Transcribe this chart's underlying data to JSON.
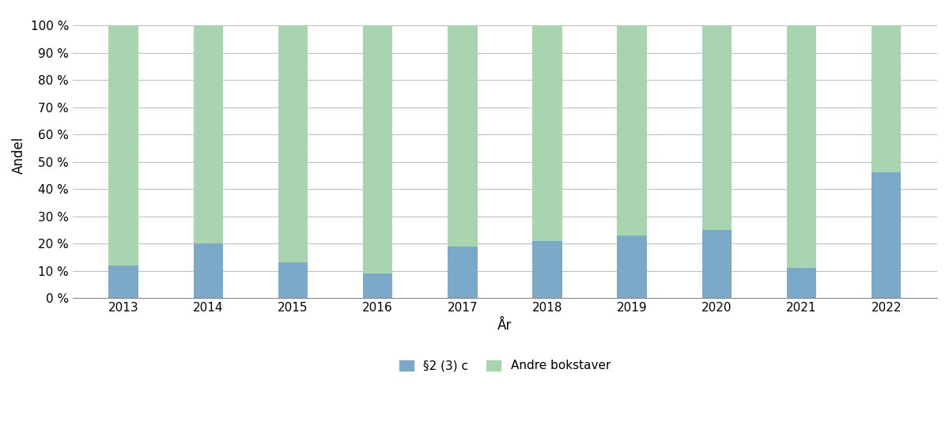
{
  "years": [
    "2013",
    "2014",
    "2015",
    "2016",
    "2017",
    "2018",
    "2019",
    "2020",
    "2021",
    "2022"
  ],
  "s2_3c": [
    12,
    20,
    13,
    9,
    19,
    21,
    23,
    25,
    11,
    46
  ],
  "andre": [
    88,
    80,
    87,
    91,
    81,
    79,
    77,
    75,
    89,
    54
  ],
  "color_s2_3c": "#7aaac8",
  "color_andre": "#a8d5b0",
  "xlabel": "År",
  "ylabel": "Andel",
  "ytick_labels": [
    "0 %",
    "10 %",
    "20 %",
    "30 %",
    "40 %",
    "50 %",
    "60 %",
    "70 %",
    "80 %",
    "90 %",
    "100 %"
  ],
  "ytick_values": [
    0,
    10,
    20,
    30,
    40,
    50,
    60,
    70,
    80,
    90,
    100
  ],
  "legend_s2_3c": "§ 2 (3) c",
  "legend_andre": "Andre bokstaver",
  "bar_width": 0.35,
  "ylim": [
    0,
    105
  ],
  "background_color": "#ffffff",
  "grid_color": "#b0b0b0",
  "axis_label_fontsize": 12,
  "tick_fontsize": 11,
  "legend_fontsize": 11
}
